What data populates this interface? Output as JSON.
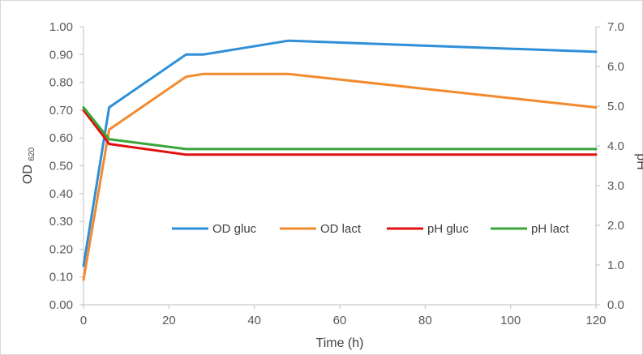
{
  "chart_data": {
    "type": "line",
    "xlabel": "Time (h)",
    "ylabel": "OD",
    "ylabel_sub": "620",
    "y2label": "pH",
    "xlim": [
      0,
      120
    ],
    "ylim": [
      0,
      1.0
    ],
    "y2lim": [
      0,
      7.0
    ],
    "x_ticks": [
      "0",
      "20",
      "40",
      "60",
      "80",
      "100",
      "120"
    ],
    "y_ticks": [
      "0.00",
      "0.10",
      "0.20",
      "0.30",
      "0.40",
      "0.50",
      "0.60",
      "0.70",
      "0.80",
      "0.90",
      "1.00"
    ],
    "y2_ticks": [
      "0.0",
      "1.0",
      "2.0",
      "3.0",
      "4.0",
      "5.0",
      "6.0",
      "7.0"
    ],
    "grid": false,
    "legend_position": "inside-center",
    "series": [
      {
        "name": "OD gluc",
        "axis": "left",
        "color": "#2e8fd8",
        "x": [
          0,
          6,
          24,
          28,
          48,
          120
        ],
        "y": [
          0.14,
          0.71,
          0.9,
          0.9,
          0.95,
          0.91
        ]
      },
      {
        "name": "OD lact",
        "axis": "left",
        "color": "#f28a2e",
        "x": [
          0,
          6,
          24,
          28,
          48,
          120
        ],
        "y": [
          0.09,
          0.63,
          0.82,
          0.83,
          0.83,
          0.71
        ]
      },
      {
        "name": "pH gluc",
        "axis": "right",
        "color": "#e01010",
        "x": [
          0,
          5,
          6,
          24,
          120
        ],
        "y": [
          4.9,
          4.2,
          4.05,
          3.78,
          3.78
        ]
      },
      {
        "name": "pH lact",
        "axis": "right",
        "color": "#3aa63a",
        "x": [
          0,
          5,
          6,
          24,
          120
        ],
        "y": [
          4.97,
          4.3,
          4.17,
          3.92,
          3.92
        ]
      }
    ]
  }
}
